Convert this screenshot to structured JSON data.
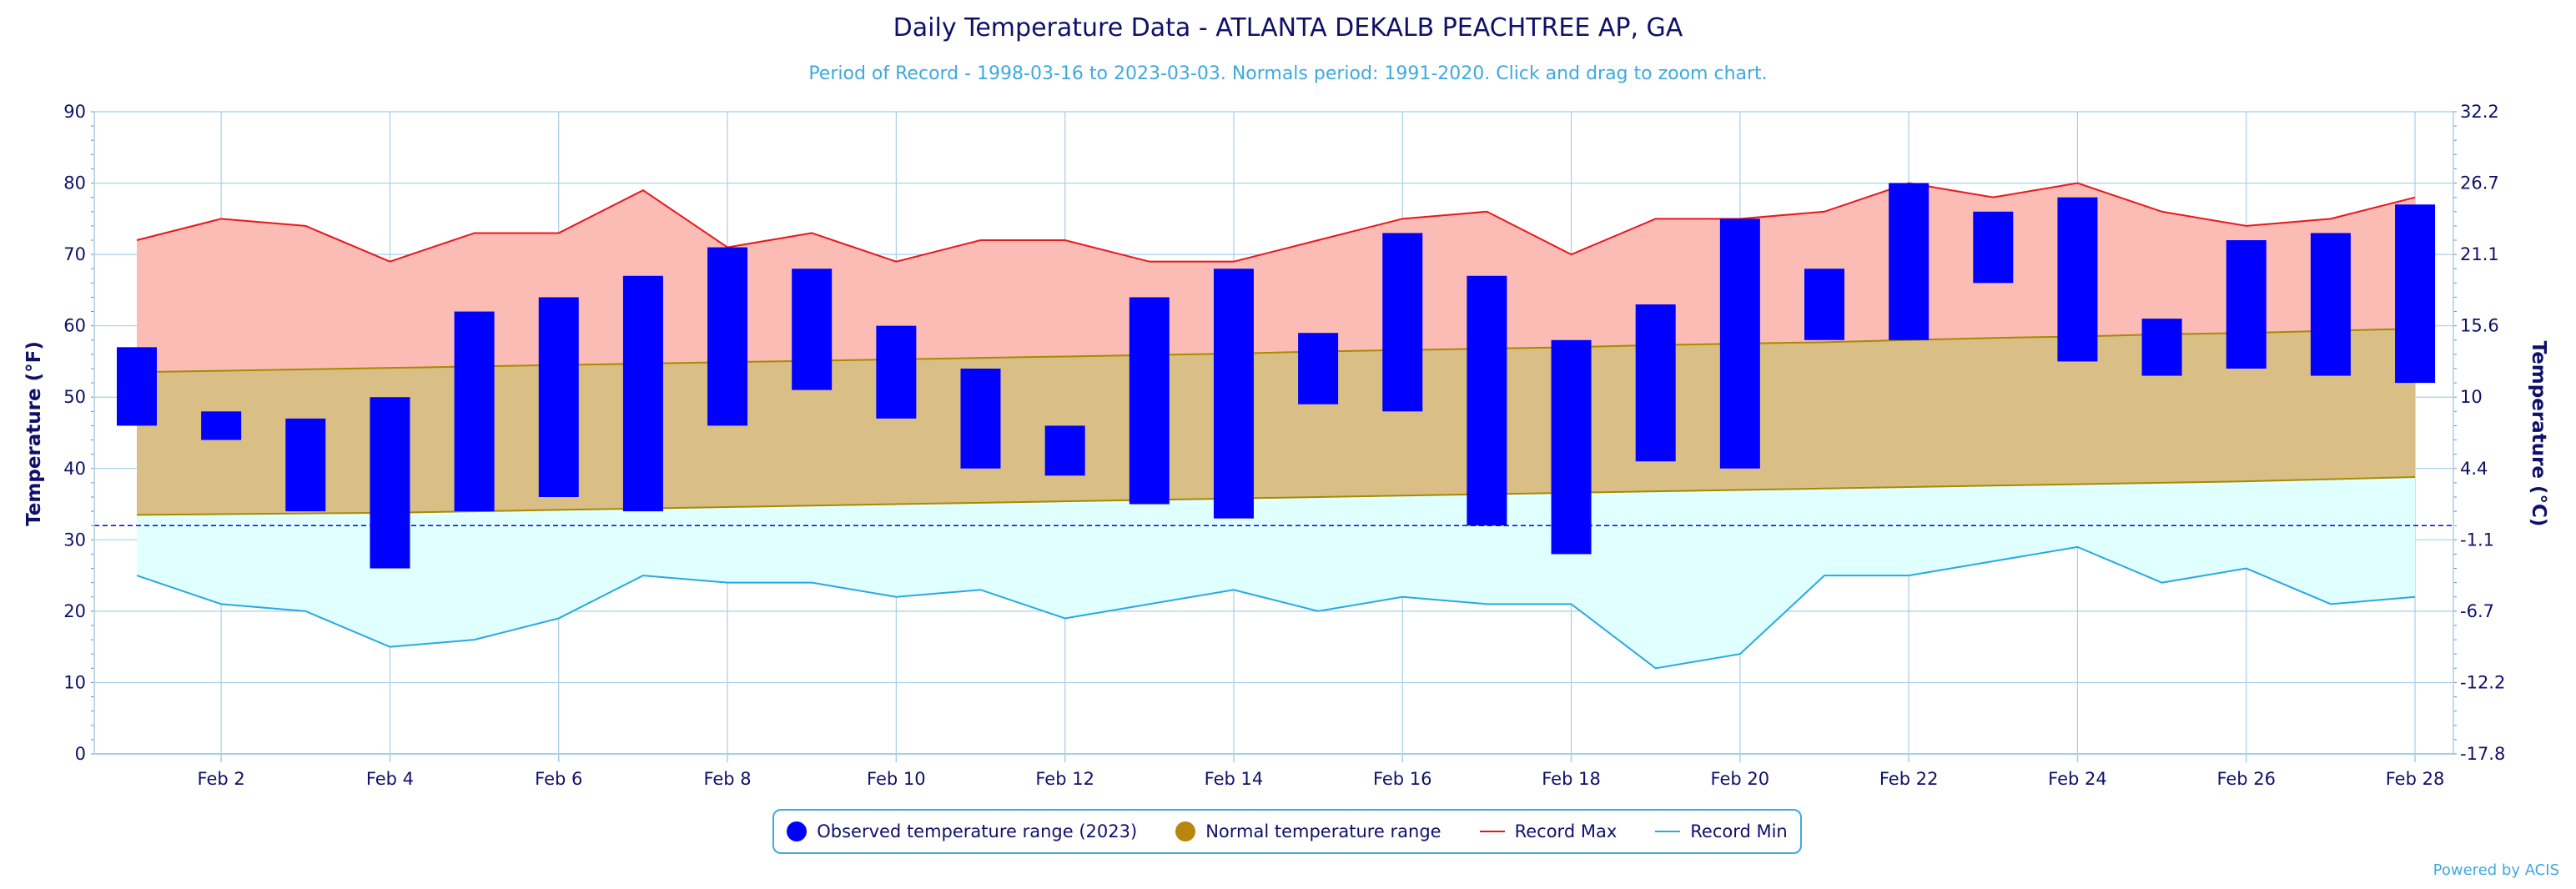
{
  "colors": {
    "observed": "#0000ff",
    "normal_fill": "#d9bf85",
    "normal_line": "#a88a00",
    "normal_legend": "#b8860b",
    "record_max_fill": "#fbbcb6",
    "record_max_line": "#e8171e",
    "record_min_fill": "#e0ffff",
    "record_min_line": "#29a9e1",
    "title": "#10106b",
    "subtitle": "#3fa9dd",
    "grid": "#a7cfe8"
  },
  "chart_data": {
    "type": "floating-bar-range",
    "title": "Daily Temperature Data - ATLANTA DEKALB PEACHTREE AP, GA",
    "subtitle": "Period of Record - 1998-03-16 to 2023-03-03. Normals period: 1991-2020. Click and drag to zoom chart.",
    "ylabel": "Temperature (°F)",
    "ylabel_right": "Temperature (°C)",
    "ylim": [
      0,
      90
    ],
    "yticks": [
      "0",
      "10",
      "20",
      "30",
      "40",
      "50",
      "60",
      "70",
      "80",
      "90"
    ],
    "yticks_right": [
      "-17.8",
      "-12.2",
      "-6.7",
      "-1.1",
      "4.4",
      "10",
      "15.6",
      "21.1",
      "26.7",
      "32.2"
    ],
    "xtick_labels": [
      "Feb 2",
      "Feb 4",
      "Feb 6",
      "Feb 8",
      "Feb 10",
      "Feb 12",
      "Feb 14",
      "Feb 16",
      "Feb 18",
      "Feb 20",
      "Feb 22",
      "Feb 24",
      "Feb 26",
      "Feb 28"
    ],
    "freezing_line": 32,
    "days": [
      1,
      2,
      3,
      4,
      5,
      6,
      7,
      8,
      9,
      10,
      11,
      12,
      13,
      14,
      15,
      16,
      17,
      18,
      19,
      20,
      21,
      22,
      23,
      24,
      25,
      26,
      27,
      28
    ],
    "observed_high": [
      57,
      48,
      47,
      50,
      62,
      64,
      67,
      71,
      68,
      60,
      54,
      46,
      64,
      68,
      59,
      73,
      67,
      58,
      63,
      75,
      68,
      80,
      76,
      78,
      61,
      72,
      73,
      77
    ],
    "observed_low": [
      46,
      44,
      34,
      26,
      34,
      36,
      34,
      46,
      51,
      47,
      40,
      39,
      35,
      33,
      49,
      48,
      32,
      28,
      41,
      40,
      58,
      58,
      66,
      55,
      53,
      54,
      53,
      52
    ],
    "normal_high": [
      53.5,
      53.7,
      53.9,
      54.1,
      54.3,
      54.5,
      54.7,
      54.9,
      55.1,
      55.3,
      55.5,
      55.7,
      55.9,
      56.1,
      56.4,
      56.6,
      56.8,
      57.0,
      57.3,
      57.5,
      57.7,
      58.0,
      58.3,
      58.5,
      58.8,
      59.0,
      59.3,
      59.6
    ],
    "normal_low": [
      33.5,
      33.6,
      33.7,
      33.8,
      34.0,
      34.2,
      34.4,
      34.6,
      34.8,
      35.0,
      35.2,
      35.4,
      35.6,
      35.8,
      36.0,
      36.2,
      36.4,
      36.6,
      36.8,
      37.0,
      37.2,
      37.4,
      37.6,
      37.8,
      38.0,
      38.2,
      38.5,
      38.8
    ],
    "record_max": [
      72,
      75,
      74,
      69,
      73,
      73,
      79,
      71,
      73,
      69,
      72,
      72,
      69,
      69,
      72,
      75,
      76,
      70,
      75,
      75,
      76,
      80,
      78,
      80,
      76,
      74,
      75,
      78
    ],
    "record_min": [
      25,
      21,
      20,
      15,
      16,
      19,
      25,
      24,
      24,
      22,
      23,
      19,
      21,
      23,
      20,
      22,
      21,
      21,
      12,
      14,
      25,
      25,
      27,
      29,
      24,
      26,
      21,
      22
    ],
    "legend": [
      {
        "name": "Observed temperature range (2023)",
        "marker": "dot",
        "color": "#0000ff"
      },
      {
        "name": "Normal temperature range",
        "marker": "dot",
        "color": "#b8860b"
      },
      {
        "name": "Record Max",
        "marker": "line",
        "color": "#e8171e"
      },
      {
        "name": "Record Min",
        "marker": "line",
        "color": "#29a9e1"
      }
    ],
    "legend_position": "bottom-center",
    "grid": true
  },
  "credits": "Powered by ACIS"
}
